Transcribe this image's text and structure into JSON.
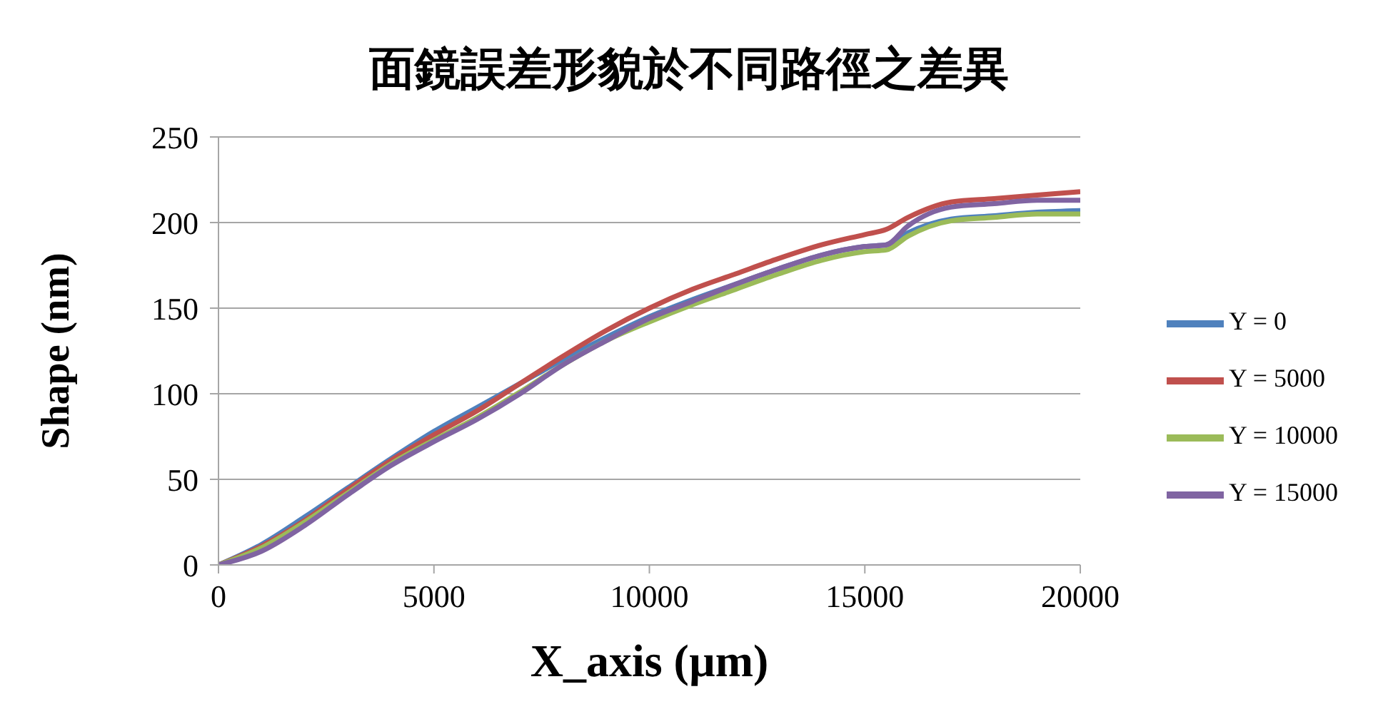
{
  "chart_data": {
    "type": "line",
    "title": "面鏡誤差形貌於不同路徑之差異",
    "xlabel": "X_axis (µm)",
    "ylabel": "Shape (nm)",
    "x": [
      0,
      1000,
      2000,
      3000,
      4000,
      5000,
      6000,
      7000,
      8000,
      9000,
      10000,
      11000,
      12000,
      13000,
      14000,
      15000,
      15500,
      16000,
      17000,
      18000,
      19000,
      20000
    ],
    "series": [
      {
        "name": "Y = 0",
        "color": "#4f81bd",
        "values": [
          0,
          12,
          28,
          45,
          62,
          78,
          92,
          106,
          120,
          133,
          145,
          155,
          164,
          173,
          181,
          186,
          187,
          194,
          202,
          204,
          206,
          207
        ]
      },
      {
        "name": "Y = 5000",
        "color": "#c0504d",
        "values": [
          0,
          11,
          26,
          44,
          61,
          76,
          90,
          106,
          122,
          137,
          150,
          161,
          170,
          179,
          187,
          193,
          196,
          203,
          212,
          214,
          216,
          218
        ]
      },
      {
        "name": "Y = 10000",
        "color": "#9bbb59",
        "values": [
          0,
          10,
          25,
          42,
          59,
          73,
          86,
          101,
          117,
          131,
          142,
          152,
          161,
          170,
          178,
          183,
          184,
          192,
          201,
          203,
          205,
          205
        ]
      },
      {
        "name": "Y = 15000",
        "color": "#8064a2",
        "values": [
          0,
          8,
          23,
          41,
          58,
          72,
          85,
          100,
          117,
          131,
          144,
          154,
          164,
          173,
          181,
          186,
          187,
          198,
          209,
          211,
          213,
          213
        ]
      }
    ],
    "xlim": [
      0,
      20000
    ],
    "xticks": [
      0,
      5000,
      10000,
      15000,
      20000
    ],
    "ylim": [
      0,
      250
    ],
    "yticks": [
      0,
      50,
      100,
      150,
      200,
      250
    ],
    "grid": "y",
    "legend": "right",
    "marker": "none",
    "line_style": "solid"
  }
}
